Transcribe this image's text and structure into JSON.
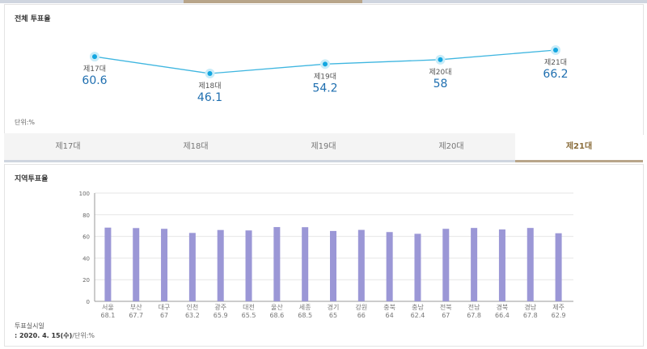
{
  "overall": {
    "title": "전체 투표율",
    "unit": "단위:%",
    "chart_data": {
      "type": "line",
      "categories": [
        "제17대",
        "제18대",
        "제19대",
        "제20대",
        "제21대"
      ],
      "values": [
        60.6,
        46.1,
        54.2,
        58,
        66.2
      ],
      "title": "전체 투표율",
      "ylabel": "%"
    }
  },
  "tabs": [
    {
      "label": "제17대"
    },
    {
      "label": "제18대"
    },
    {
      "label": "제19대"
    },
    {
      "label": "제20대"
    },
    {
      "label": "제21대",
      "active": true
    }
  ],
  "regional": {
    "title": "지역투표율",
    "note_label": "투표실시일",
    "note_date": ": 2020. 4. 15(수)",
    "note_unit": "/단위:%",
    "chart_data": {
      "type": "bar",
      "categories": [
        "서울",
        "부산",
        "대구",
        "인천",
        "광주",
        "대전",
        "울산",
        "세종",
        "경기",
        "강원",
        "충북",
        "충남",
        "전북",
        "전남",
        "경북",
        "경남",
        "제주"
      ],
      "values": [
        68.1,
        67.7,
        67,
        63.2,
        65.9,
        65.5,
        68.6,
        68.5,
        65,
        66,
        64,
        62.4,
        67,
        67.8,
        66.4,
        67.8,
        62.9
      ],
      "yticks": [
        0,
        20,
        40,
        60,
        80,
        100
      ],
      "ylim": [
        0,
        100
      ],
      "title": "지역투표율",
      "bar_color": "#9b97d6"
    }
  },
  "colors": {
    "line": "#3fb6e0",
    "value": "#1f6fb0",
    "accent": "#b8a58a"
  }
}
